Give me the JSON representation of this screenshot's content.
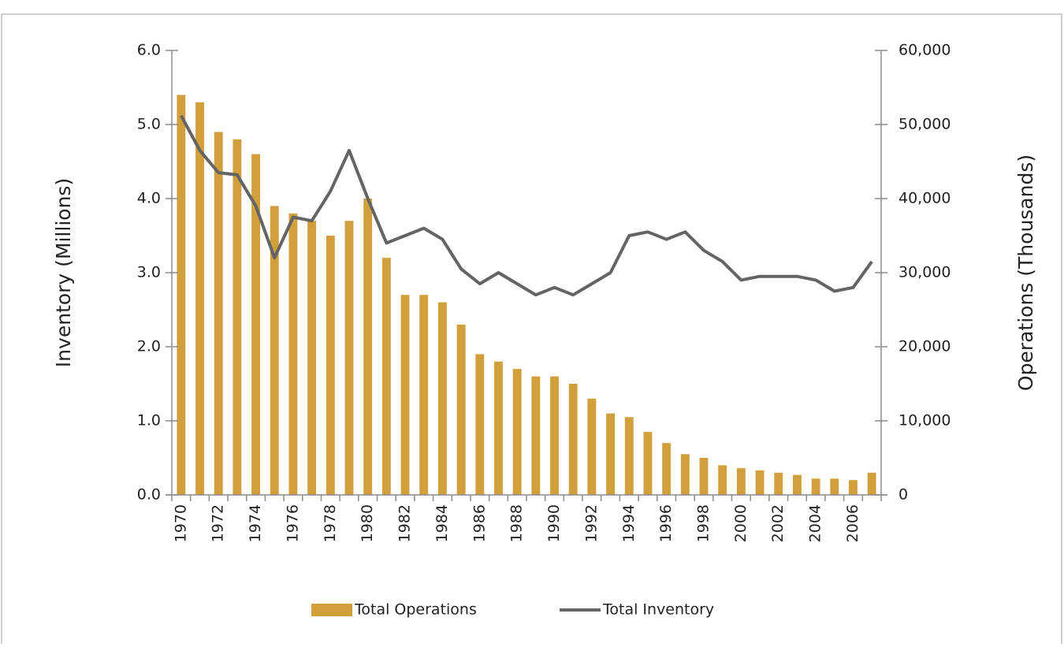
{
  "chart_data": {
    "type": "bar",
    "categories": [
      "1970",
      null,
      "1972",
      null,
      "1974",
      null,
      "1976",
      null,
      "1978",
      null,
      "1980",
      null,
      "1982",
      null,
      "1984",
      null,
      "1986",
      null,
      "1988",
      null,
      "1990",
      null,
      "1992",
      null,
      "1994",
      null,
      "1996",
      null,
      "1998",
      null,
      "2000",
      null,
      "2002",
      null,
      "2004",
      null,
      "2006",
      null
    ],
    "ylabel": "Inventory  (Millions)",
    "y2label": "Operations (Thousands)",
    "ylim": [
      0,
      6
    ],
    "yticks": [
      {
        "value": 0,
        "label": "0.0"
      },
      {
        "value": 1,
        "label": "1.0"
      },
      {
        "value": 2,
        "label": "2.0"
      },
      {
        "value": 3,
        "label": "3.0"
      },
      {
        "value": 4,
        "label": "4.0"
      },
      {
        "value": 5,
        "label": "5.0"
      },
      {
        "value": 6,
        "label": "6.0"
      }
    ],
    "y2lim": [
      0,
      60000
    ],
    "y2ticks": [
      0,
      {
        "value": 10000,
        "label": "10,000"
      },
      {
        "value": 20000,
        "label": "20,000"
      },
      {
        "value": 30000,
        "label": "30,000"
      },
      {
        "value": 40000,
        "label": "40,000"
      },
      {
        "value": 50000,
        "label": "50,000"
      },
      {
        "value": 60000,
        "label": "60,000"
      }
    ],
    "legend": "bottom",
    "series": [
      {
        "name": "Total Operations",
        "type": "bar",
        "axis": "y2",
        "color": "#d19f3c",
        "values": [
          54000,
          53000,
          49000,
          48000,
          46000,
          39000,
          38000,
          37000,
          35000,
          37000,
          40000,
          32000,
          27000,
          27000,
          26000,
          23000,
          19000,
          18000,
          17000,
          16000,
          16000,
          15000,
          13000,
          11000,
          10500,
          8500,
          7000,
          5500,
          5000,
          4000,
          3600,
          3300,
          3000,
          2700,
          2200,
          2200,
          2000,
          3000
        ]
      },
      {
        "name": "Total Inventory",
        "type": "line",
        "axis": "y",
        "color": "#646464",
        "values": [
          5.12,
          4.65,
          4.35,
          4.32,
          3.9,
          3.2,
          3.75,
          3.7,
          4.1,
          4.65,
          4.0,
          3.4,
          3.5,
          3.6,
          3.45,
          3.05,
          2.85,
          3.0,
          2.85,
          2.7,
          2.8,
          2.7,
          2.85,
          3.0,
          3.5,
          3.55,
          3.45,
          3.55,
          3.3,
          3.15,
          2.9,
          2.95,
          2.95,
          2.95,
          2.9,
          2.75,
          2.8,
          3.15
        ]
      }
    ]
  }
}
